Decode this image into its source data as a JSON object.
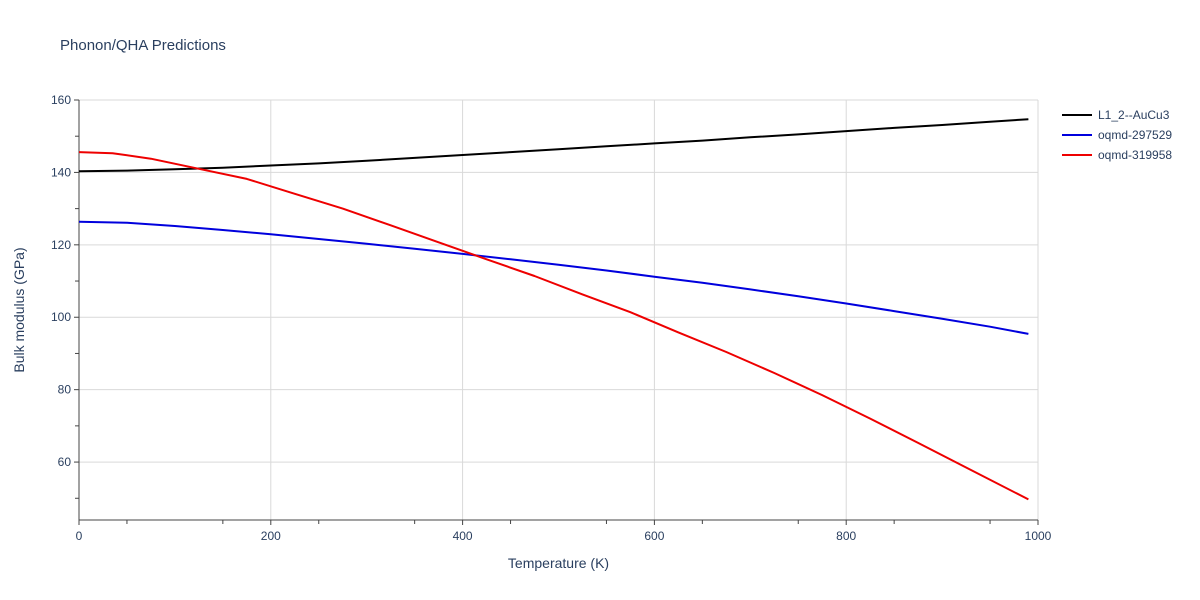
{
  "chart_data": {
    "type": "line",
    "title": "Phonon/QHA Predictions",
    "xlabel": "Temperature (K)",
    "ylabel": "Bulk modulus (GPa)",
    "xlim": [
      0,
      1000
    ],
    "ylim": [
      44,
      160
    ],
    "x_ticks": [
      0,
      200,
      400,
      600,
      800,
      1000
    ],
    "y_ticks": [
      60,
      80,
      100,
      120,
      140,
      160
    ],
    "grid": true,
    "legend_position": "top-right",
    "series": [
      {
        "name": "L1_2--AuCu3",
        "color": "#000000",
        "x": [
          0,
          50,
          100,
          150,
          200,
          250,
          300,
          350,
          400,
          450,
          500,
          550,
          600,
          650,
          700,
          750,
          800,
          850,
          900,
          950,
          990
        ],
        "y": [
          140.3,
          140.5,
          140.9,
          141.3,
          141.9,
          142.5,
          143.2,
          144.0,
          144.8,
          145.6,
          146.4,
          147.2,
          148.0,
          148.8,
          149.7,
          150.5,
          151.4,
          152.3,
          153.1,
          154.0,
          154.7
        ]
      },
      {
        "name": "oqmd-297529",
        "color": "#0000dd",
        "x": [
          0,
          50,
          100,
          150,
          200,
          250,
          300,
          350,
          400,
          450,
          500,
          550,
          600,
          650,
          700,
          750,
          800,
          850,
          900,
          950,
          990
        ],
        "y": [
          126.4,
          126.1,
          125.2,
          124.1,
          122.9,
          121.6,
          120.3,
          118.9,
          117.5,
          116.0,
          114.5,
          112.9,
          111.2,
          109.5,
          107.7,
          105.8,
          103.8,
          101.7,
          99.6,
          97.4,
          95.4
        ]
      },
      {
        "name": "oqmd-319958",
        "color": "#ee0000",
        "x": [
          0,
          35,
          75,
          125,
          175,
          225,
          275,
          325,
          375,
          425,
          475,
          525,
          575,
          625,
          675,
          725,
          775,
          825,
          875,
          925,
          990
        ],
        "y": [
          145.6,
          145.3,
          143.8,
          141.0,
          138.2,
          134.1,
          130.0,
          125.4,
          120.7,
          116.0,
          111.4,
          106.3,
          101.4,
          95.8,
          90.4,
          84.6,
          78.5,
          72.0,
          65.3,
          58.5,
          49.7
        ]
      }
    ]
  }
}
